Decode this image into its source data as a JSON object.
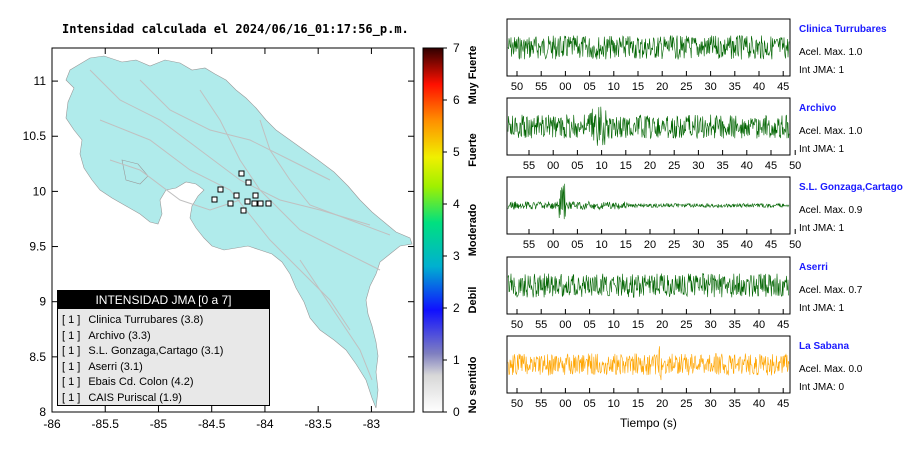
{
  "map": {
    "title": "Intensidad calculada el 2024/06/16_01:17:56_p.m.",
    "xticks": [
      "-86",
      "-85.5",
      "-85",
      "-84.5",
      "-84",
      "-83.5",
      "-83"
    ],
    "yticks": [
      "11",
      "10.5",
      "10",
      "9.5",
      "9",
      "8.5",
      "8"
    ],
    "land_color": "#b0ebeb",
    "station_markers": 12
  },
  "colorbar": {
    "ticks": [
      "0",
      "1",
      "2",
      "3",
      "4",
      "5",
      "6",
      "7"
    ],
    "categories": [
      "No sentido",
      "Debil",
      "Moderado",
      "Fuerte",
      "Muy Fuerte"
    ]
  },
  "legend": {
    "title": "INTENSIDAD JMA [0 a 7]",
    "items": [
      {
        "level": "[ 1 ]",
        "name": "Clinica Turrubares (3.8)"
      },
      {
        "level": "[ 1 ]",
        "name": "Archivo (3.3)"
      },
      {
        "level": "[ 1 ]",
        "name": "S.L. Gonzaga,Cartago (3.1)"
      },
      {
        "level": "[ 1 ]",
        "name": "Aserri (3.1)"
      },
      {
        "level": "[ 1 ]",
        "name": "Ebais Cd. Colon (4.2)"
      },
      {
        "level": "[ 1 ]",
        "name": "CAIS Puriscal (1.9)"
      }
    ]
  },
  "traces": [
    {
      "name": "Clinica Turrubares",
      "acel": "Acel. Max. 1.0",
      "jma": "Int JMA: 1",
      "color": "#006400",
      "xticks": [
        "50",
        "55",
        "00",
        "05",
        "10",
        "15",
        "20",
        "25",
        "30",
        "35",
        "40",
        "45"
      ],
      "offset": 0
    },
    {
      "name": "Archivo",
      "acel": "Acel. Max. 1.0",
      "jma": "Int JMA: 1",
      "color": "#006400",
      "xticks": [
        "55",
        "00",
        "05",
        "10",
        "15",
        "20",
        "25",
        "30",
        "35",
        "40",
        "45",
        "50"
      ],
      "offset": 1
    },
    {
      "name": "S.L. Gonzaga,Cartago",
      "acel": "Acel. Max. 0.9",
      "jma": "Int JMA: 1",
      "color": "#006400",
      "xticks": [
        "55",
        "00",
        "05",
        "10",
        "15",
        "20",
        "25",
        "30",
        "35",
        "40",
        "45",
        "50"
      ],
      "offset": 1
    },
    {
      "name": "Aserri",
      "acel": "Acel. Max. 0.7",
      "jma": "Int JMA: 1",
      "color": "#006400",
      "xticks": [
        "50",
        "55",
        "00",
        "05",
        "10",
        "15",
        "20",
        "25",
        "30",
        "35",
        "40",
        "45"
      ],
      "offset": 0
    },
    {
      "name": "La Sabana",
      "acel": "Acel. Max. 0.0",
      "jma": "Int JMA: 0",
      "color": "#ffa500",
      "xticks": [
        "50",
        "55",
        "00",
        "05",
        "10",
        "15",
        "20",
        "25",
        "30",
        "35",
        "40",
        "45"
      ],
      "offset": 0
    }
  ],
  "xlabel": "Tiempo (s)",
  "chart_data": {
    "type": "line",
    "title": "Intensidad calculada el 2024/06/16_01:17:56_p.m.",
    "xlabel": "Tiempo (s)",
    "ylabel": "",
    "series": [
      {
        "name": "Clinica Turrubares",
        "acel_max": 1.0,
        "int_jma": 1
      },
      {
        "name": "Archivo",
        "acel_max": 1.0,
        "int_jma": 1
      },
      {
        "name": "S.L. Gonzaga,Cartago",
        "acel_max": 0.9,
        "int_jma": 1
      },
      {
        "name": "Aserri",
        "acel_max": 0.7,
        "int_jma": 1
      },
      {
        "name": "La Sabana",
        "acel_max": 0.0,
        "int_jma": 0
      }
    ],
    "map_xlim": [
      -86,
      -82.6
    ],
    "map_ylim": [
      8,
      11.3
    ],
    "colorbar_range": [
      0,
      7
    ]
  }
}
